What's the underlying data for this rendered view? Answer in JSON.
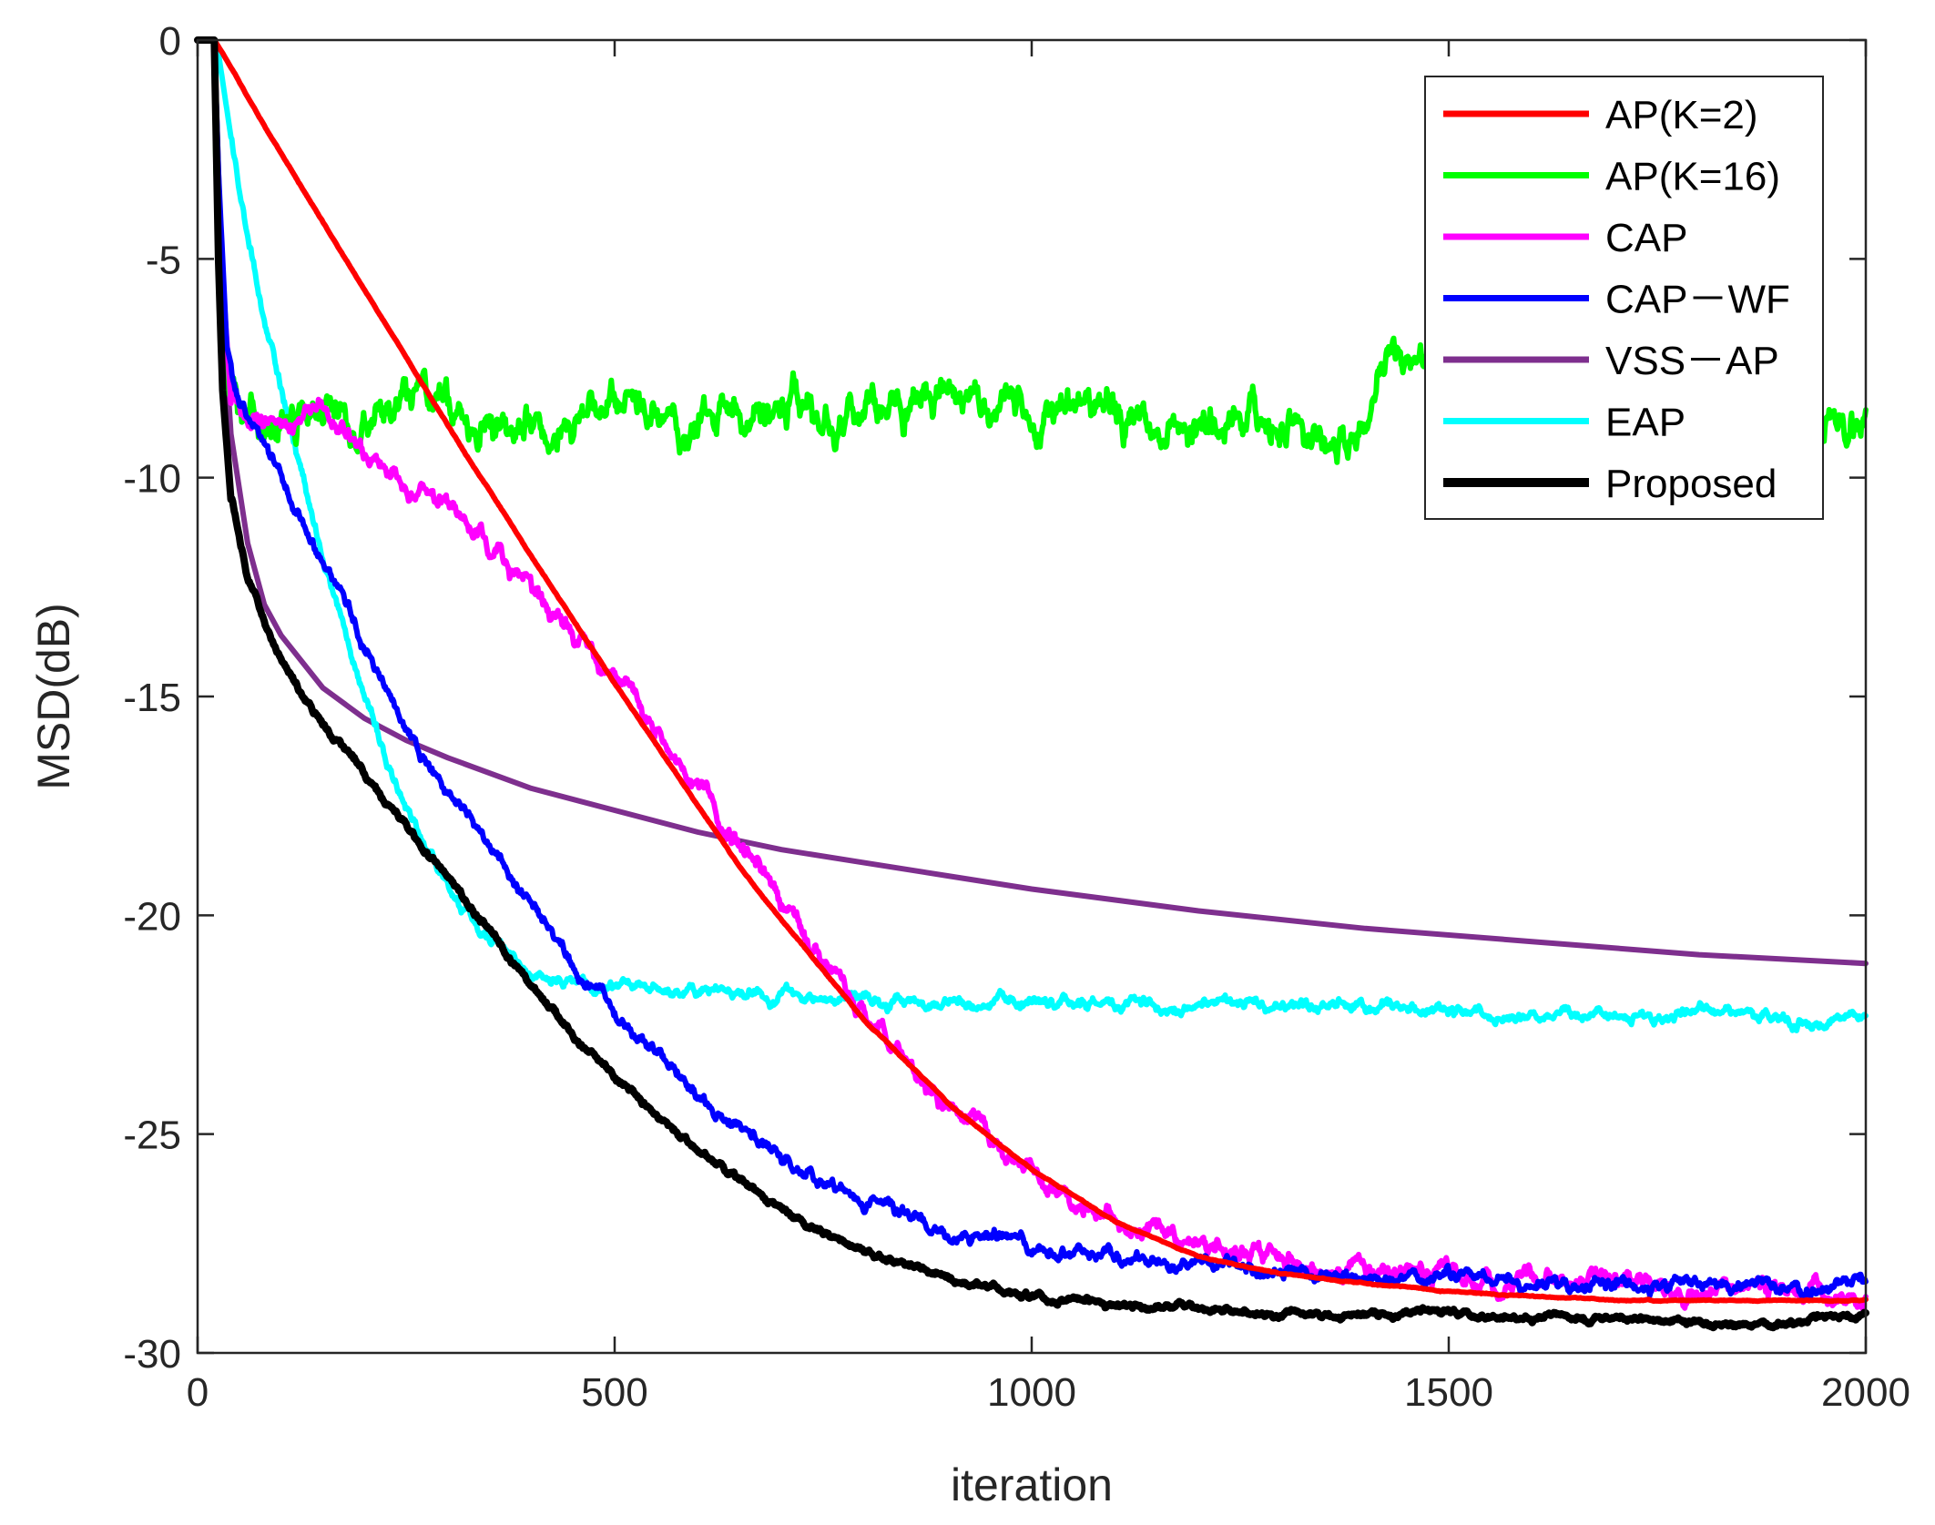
{
  "chart_data": {
    "type": "line",
    "xlabel": "iteration",
    "ylabel": "MSD(dB)",
    "xlim": [
      0,
      2000
    ],
    "ylim": [
      -30,
      0
    ],
    "xticks": [
      0,
      500,
      1000,
      1500,
      2000
    ],
    "yticks": [
      0,
      -5,
      -10,
      -15,
      -20,
      -25,
      -30
    ],
    "xtick_labels": [
      "0",
      "500",
      "1000",
      "1500",
      "2000"
    ],
    "ytick_labels": [
      "0",
      "-5",
      "-10",
      "-15",
      "-20",
      "-25",
      "-30"
    ],
    "grid": false,
    "legend_position": "top-right",
    "series": [
      {
        "name": "AP(K=2)",
        "color": "#ff0000",
        "noise": 0.02,
        "x": [
          0,
          20,
          30,
          100,
          200,
          300,
          400,
          500,
          600,
          650,
          700,
          800,
          900,
          1000,
          1100,
          1200,
          1300,
          1400,
          1500,
          1600,
          1700,
          1800,
          1900,
          2000
        ],
        "y": [
          0,
          0,
          -0.3,
          -2.6,
          -5.7,
          -8.8,
          -11.8,
          -14.7,
          -17.5,
          -18.9,
          -20.1,
          -22.4,
          -24.3,
          -25.8,
          -27.0,
          -27.8,
          -28.2,
          -28.4,
          -28.6,
          -28.7,
          -28.8,
          -28.8,
          -28.8,
          -28.8
        ]
      },
      {
        "name": "AP(K=16)",
        "color": "#00ff00",
        "noise": 0.7,
        "x": [
          0,
          20,
          22,
          35,
          60,
          80,
          100,
          140,
          200,
          300,
          400,
          500,
          600,
          700,
          800,
          880,
          1000,
          1100,
          1200,
          1300,
          1380,
          1430,
          1500,
          1600,
          1700,
          1800,
          1900,
          1970,
          2000
        ],
        "y": [
          0,
          0,
          -3.0,
          -8.0,
          -8.8,
          -9.0,
          -8.6,
          -7.8,
          -8.6,
          -8.6,
          -8.8,
          -8.6,
          -8.7,
          -8.6,
          -8.6,
          -7.8,
          -8.5,
          -8.5,
          -8.6,
          -8.4,
          -9.2,
          -7.2,
          -8.4,
          -8.5,
          -8.4,
          -8.5,
          -8.4,
          -8.6,
          -8.9
        ]
      },
      {
        "name": "CAP",
        "color": "#ff00ff",
        "noise": 0.35,
        "x": [
          0,
          20,
          25,
          40,
          60,
          100,
          150,
          200,
          300,
          400,
          500,
          600,
          700,
          800,
          900,
          1000,
          1100,
          1200,
          1300,
          1400,
          1500,
          1600,
          1700,
          1800,
          1900,
          2000
        ],
        "y": [
          0,
          0,
          -4.0,
          -8.3,
          -8.5,
          -8.6,
          -8.5,
          -9.3,
          -10.7,
          -12.6,
          -14.5,
          -16.9,
          -19.8,
          -22.3,
          -24.3,
          -25.9,
          -27.0,
          -27.6,
          -27.9,
          -28.1,
          -28.3,
          -28.4,
          -28.5,
          -28.6,
          -28.6,
          -28.6
        ]
      },
      {
        "name": "CAP－WF",
        "color": "#0000ff",
        "noise": 0.25,
        "x": [
          0,
          20,
          25,
          35,
          50,
          80,
          100,
          150,
          200,
          250,
          300,
          350,
          400,
          500,
          600,
          700,
          800,
          900,
          1000,
          1100,
          1200,
          1300,
          1400,
          1500,
          1600,
          1700,
          1800,
          1900,
          2000
        ],
        "y": [
          0,
          0,
          -3.0,
          -7.0,
          -8.2,
          -9.2,
          -10.0,
          -12.0,
          -13.8,
          -15.6,
          -17.1,
          -18.5,
          -19.8,
          -22.2,
          -24.0,
          -25.6,
          -26.6,
          -27.2,
          -27.6,
          -27.8,
          -28.0,
          -28.1,
          -28.3,
          -28.4,
          -28.5,
          -28.5,
          -28.5,
          -28.5,
          -28.4
        ]
      },
      {
        "name": "VSS－AP",
        "color": "#7e2f8e",
        "noise": 0,
        "x": [
          0,
          20,
          25,
          30,
          40,
          60,
          80,
          100,
          150,
          200,
          250,
          300,
          400,
          500,
          600,
          700,
          800,
          900,
          1000,
          1200,
          1400,
          1600,
          1800,
          2000
        ],
        "y": [
          0,
          0,
          -3.0,
          -6.0,
          -9.0,
          -11.5,
          -12.9,
          -13.6,
          -14.8,
          -15.5,
          -16.0,
          -16.4,
          -17.1,
          -17.6,
          -18.1,
          -18.5,
          -18.8,
          -19.1,
          -19.4,
          -19.9,
          -20.3,
          -20.6,
          -20.9,
          -21.1
        ]
      },
      {
        "name": "EAP",
        "color": "#00ffff",
        "noise": 0.22,
        "x": [
          0,
          20,
          25,
          50,
          80,
          100,
          150,
          200,
          250,
          300,
          350,
          400,
          450,
          500,
          600,
          800,
          1000,
          1200,
          1400,
          1500,
          1600,
          1700,
          1800,
          1900,
          1950,
          2000
        ],
        "y": [
          0,
          0,
          -0.3,
          -3.5,
          -6.3,
          -8.0,
          -11.8,
          -15.0,
          -17.5,
          -19.4,
          -20.6,
          -21.2,
          -21.5,
          -21.6,
          -21.8,
          -22.0,
          -22.0,
          -22.0,
          -22.1,
          -22.2,
          -22.3,
          -22.3,
          -22.2,
          -22.3,
          -22.5,
          -22.3
        ]
      },
      {
        "name": "Proposed",
        "color": "#000000",
        "noise": 0.12,
        "x": [
          0,
          20,
          22,
          25,
          30,
          40,
          60,
          80,
          100,
          150,
          200,
          250,
          300,
          350,
          400,
          450,
          500,
          600,
          700,
          800,
          900,
          1000,
          1100,
          1200,
          1300,
          1400,
          1500,
          1600,
          1700,
          1800,
          1850,
          1900,
          1950,
          2000
        ],
        "y": [
          0,
          0,
          -2.0,
          -5.0,
          -8.0,
          -10.5,
          -12.2,
          -13.2,
          -14.1,
          -15.6,
          -16.8,
          -18.0,
          -19.2,
          -20.4,
          -21.6,
          -22.7,
          -23.7,
          -25.4,
          -26.7,
          -27.7,
          -28.3,
          -28.7,
          -28.9,
          -29.0,
          -29.1,
          -29.1,
          -29.1,
          -29.2,
          -29.2,
          -29.3,
          -29.4,
          -29.3,
          -29.2,
          -29.1
        ]
      }
    ]
  }
}
